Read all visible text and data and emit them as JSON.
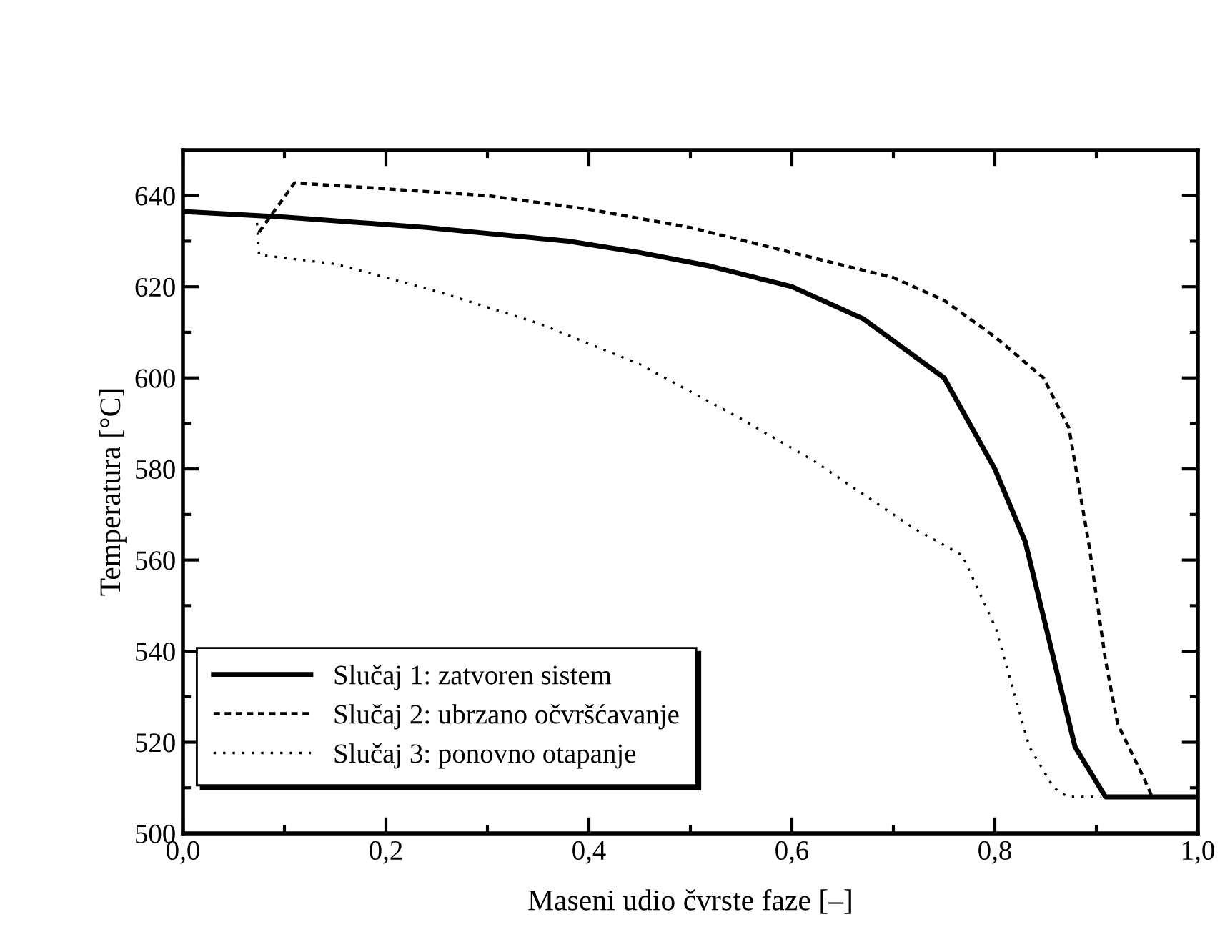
{
  "chart_data": {
    "type": "line",
    "xlabel": "Maseni udio čvrste faze [–]",
    "ylabel": "Temperatura [°C]",
    "xlim": [
      0,
      1.0
    ],
    "ylim": [
      500,
      650
    ],
    "xticks": [
      {
        "value": 0,
        "label": "0,0"
      },
      {
        "value": 0.2,
        "label": "0,2"
      },
      {
        "value": 0.4,
        "label": "0,4"
      },
      {
        "value": 0.6,
        "label": "0,6"
      },
      {
        "value": 0.8,
        "label": "0,8"
      },
      {
        "value": 1.0,
        "label": "1,0"
      }
    ],
    "yticks": [
      500,
      520,
      540,
      560,
      580,
      600,
      620,
      640
    ],
    "grid": false,
    "legend": "bottom left",
    "series": [
      {
        "name": "Slučaj 1: zatvoren sistem",
        "color": "#000000",
        "line_style": "solid",
        "x": [
          0,
          0.1,
          0.24,
          0.38,
          0.45,
          0.52,
          0.6,
          0.67,
          0.75,
          0.8,
          0.83,
          0.879,
          0.909,
          1.0
        ],
        "values": [
          636.5,
          635.3,
          633,
          630,
          627.5,
          624.5,
          620,
          613,
          600,
          580,
          564,
          519,
          508,
          508
        ]
      },
      {
        "name": "Slučaj 2: ubrzano očvršćavanje",
        "color": "#000000",
        "line_style": "dashed",
        "x": [
          0.075,
          0.11,
          0.2,
          0.3,
          0.4,
          0.5,
          0.6,
          0.7,
          0.75,
          0.8,
          0.848,
          0.873,
          0.893,
          0.909,
          0.921,
          0.946,
          0.955,
          1.0
        ],
        "values": [
          632,
          642.8,
          641.5,
          640,
          637,
          633,
          627.5,
          622,
          617,
          609,
          600,
          589,
          563,
          538,
          524,
          512.5,
          508,
          508
        ]
      },
      {
        "name": "Slučaj 3: ponovno otapanje",
        "color": "#000000",
        "line_style": "dotted",
        "x": [
          0.073,
          0.075,
          0.15,
          0.25,
          0.35,
          0.45,
          0.55,
          0.62,
          0.68,
          0.72,
          0.768,
          0.801,
          0.82,
          0.834,
          0.858,
          0.872,
          0.905
        ],
        "values": [
          634,
          627,
          625,
          619,
          612,
          603,
          591,
          582,
          573,
          567,
          561,
          545,
          530,
          519,
          510,
          508,
          508
        ]
      }
    ]
  }
}
